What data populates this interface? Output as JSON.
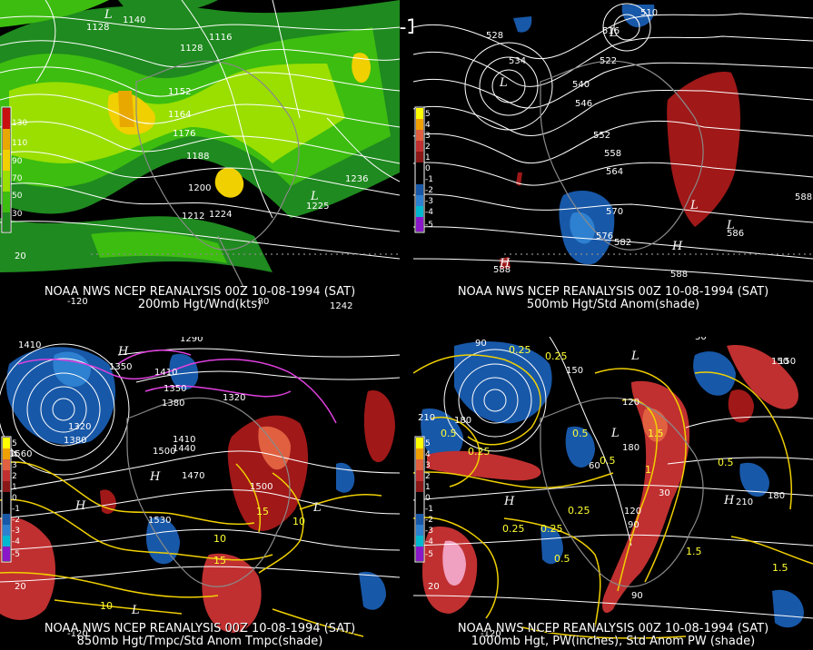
{
  "main_title": "00Z 10-08-1994 (SAT)",
  "panels": [
    {
      "caption_line1": "NOAA NWS NCEP REANALYSIS 00Z 10-08-1994 (SAT)",
      "caption_line2": "200mb Hgt/Wnd(kts)",
      "legend_units": [
        "130",
        "110",
        "90",
        "70",
        "50",
        "30"
      ],
      "legend_colors": [
        "#c81010",
        "#e8a800",
        "#f0d000",
        "#9adf00",
        "#3dbd10",
        "#1f8a1f"
      ],
      "contour_labels": [
        "1140",
        "1128",
        "1116",
        "1128",
        "1152",
        "1164",
        "1176",
        "1188",
        "1200",
        "1212",
        "1224",
        "1236",
        "1225",
        "1242",
        "L",
        "L",
        "20",
        "-120",
        "-80"
      ]
    },
    {
      "caption_line1": "NOAA NWS NCEP REANALYSIS 00Z 10-08-1994 (SAT)",
      "caption_line2": "500mb Hgt/Std Anom(shade)",
      "legend_units": [
        "5",
        "4",
        "3",
        "2",
        "1",
        "0",
        "-1",
        "-2",
        "-3",
        "-4",
        "-5"
      ],
      "legend_colors": [
        "#ffff00",
        "#f0a000",
        "#e06040",
        "#c03030",
        "#8a1818",
        "#000000",
        "#000000",
        "#1858a8",
        "#2e80d0",
        "#00b8d0",
        "#8a18c8"
      ],
      "contour_labels": [
        "510",
        "516",
        "528",
        "534",
        "522",
        "540",
        "546",
        "552",
        "558",
        "564",
        "570",
        "576",
        "582",
        "588",
        "588",
        "586",
        "588",
        "L",
        "L",
        "H",
        "H",
        "L",
        "L"
      ]
    },
    {
      "caption_line1": "NOAA NWS NCEP REANALYSIS 00Z 10-08-1994 (SAT)",
      "caption_line2": "850mb Hgt/Tmpc/Std Anom Tmpc(shade)",
      "legend_units": [
        "5",
        "4",
        "3",
        "2",
        "1",
        "0",
        "-1",
        "-2",
        "-3",
        "-4",
        "-5"
      ],
      "legend_colors": [
        "#ffff00",
        "#f0a000",
        "#e06040",
        "#c03030",
        "#8a1818",
        "#000000",
        "#000000",
        "#1858a8",
        "#2e80d0",
        "#00b8d0",
        "#8a18c8"
      ],
      "contour_labels": [
        "1410",
        "1350",
        "1380",
        "1410",
        "1320",
        "1350",
        "1290",
        "1380",
        "1320",
        "1500",
        "1440",
        "1410",
        "1470",
        "1530",
        "1500",
        "1560",
        "H",
        "H",
        "H",
        "L",
        "L",
        "20",
        "-120"
      ],
      "temp_labels": [
        "10",
        "15",
        "10",
        "15",
        "10"
      ]
    },
    {
      "caption_line1": "NOAA NWS NCEP REANALYSIS 00Z 10-08-1994 (SAT)",
      "caption_line2": "1000mb Hgt, PW(inches), Std Anom PW (shade)",
      "legend_units": [
        "5",
        "4",
        "3",
        "2",
        "1",
        "0",
        "-1",
        "-2",
        "-3",
        "-4",
        "-5"
      ],
      "legend_colors": [
        "#ffff00",
        "#f0a000",
        "#e06040",
        "#c03030",
        "#8a1818",
        "#000000",
        "#000000",
        "#1858a8",
        "#2e80d0",
        "#00b8d0",
        "#8a18c8"
      ],
      "contour_labels": [
        "30",
        "150",
        "90",
        "210",
        "180",
        "120",
        "150",
        "180",
        "90",
        "120",
        "60",
        "30",
        "210",
        "180",
        "150",
        "90",
        "H",
        "H",
        "L",
        "L",
        "20",
        "-120"
      ],
      "pw_labels": [
        "0.25",
        "0.25",
        "0.5",
        "0.25",
        "0.5",
        "0.5",
        "1",
        "1.5",
        "0.25",
        "0.5",
        "0.25",
        "1.5",
        "0.5",
        "0.25",
        "1.5"
      ]
    }
  ]
}
